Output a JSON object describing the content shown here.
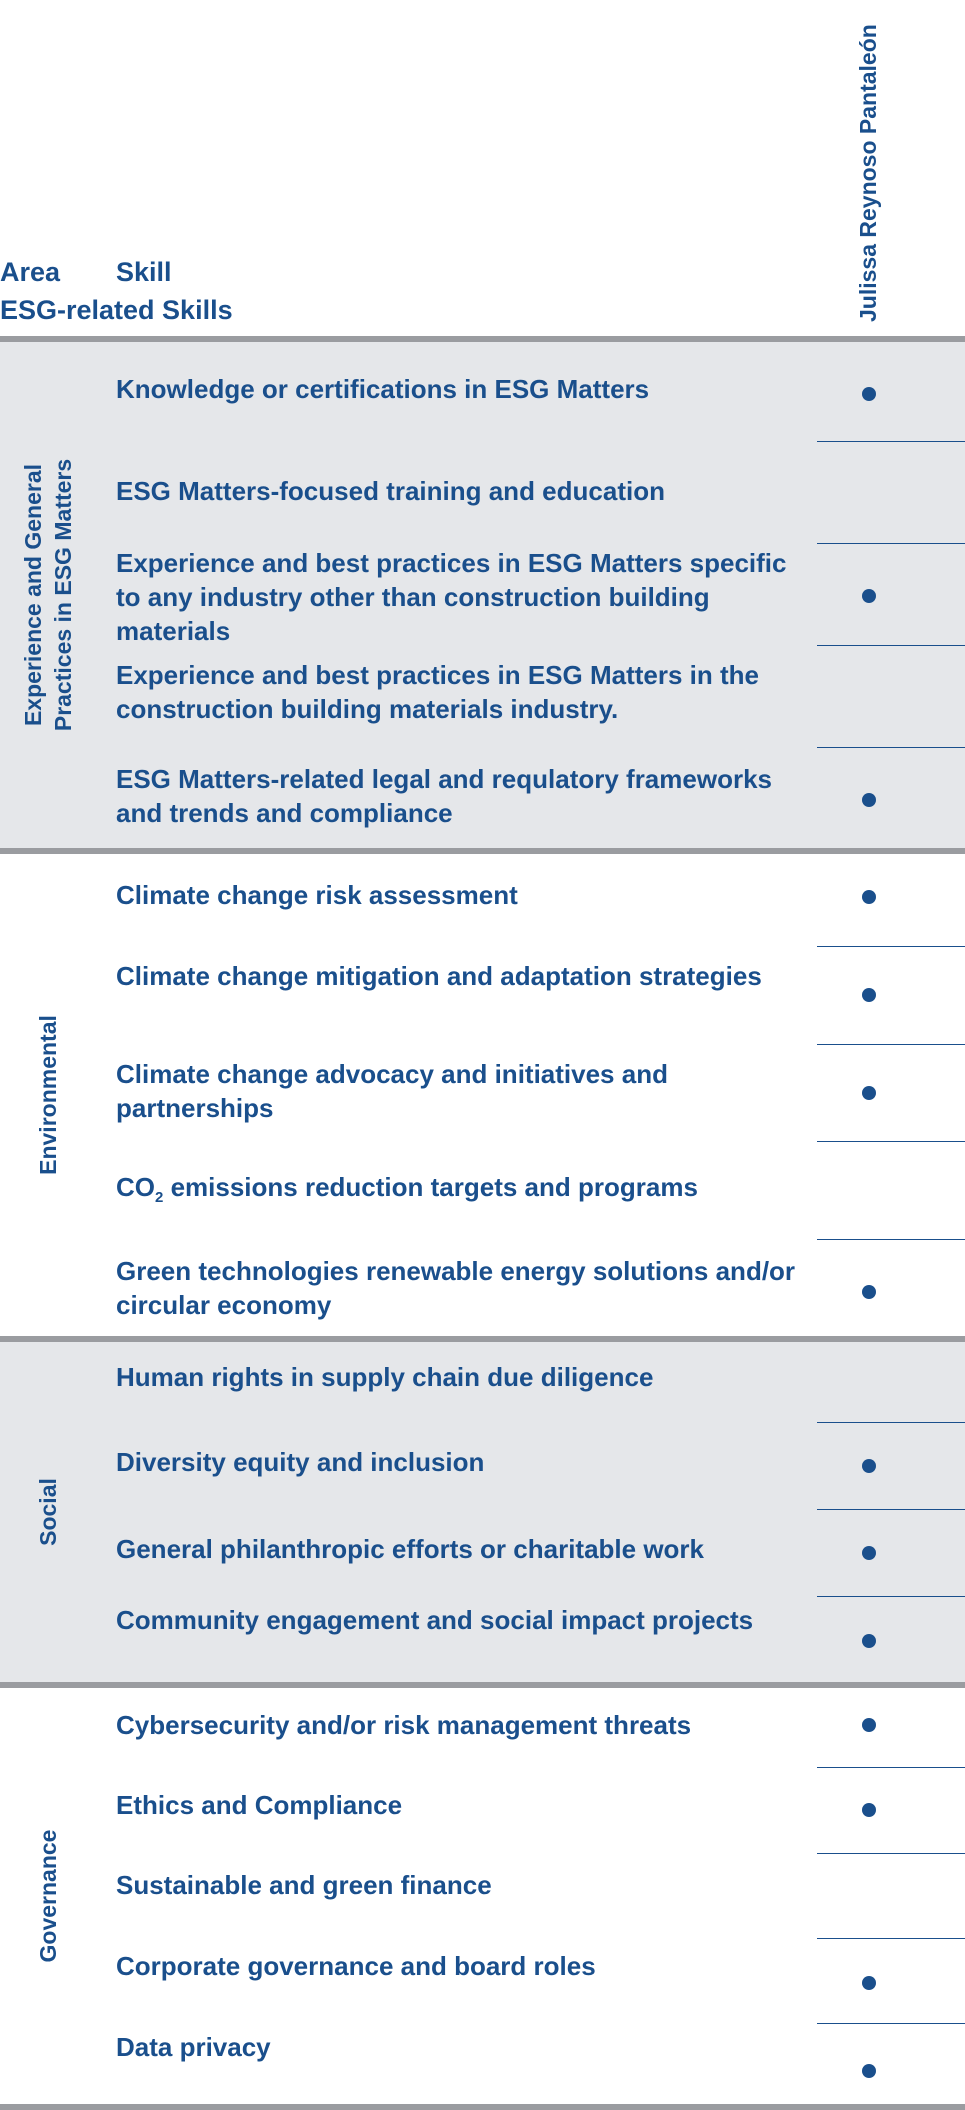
{
  "header": {
    "area": "Area",
    "skill": "Skill",
    "category": "ESG-related Skills",
    "person": "Julissa Reynoso Pantaleón"
  },
  "sections": [
    {
      "area_line1": "Experience and General",
      "area_line2": "Practices in ESG Matters",
      "rows": [
        {
          "skill": "Knowledge or certifications in ESG Matters",
          "has_skill": true
        },
        {
          "skill": "ESG Matters-focused training and education",
          "has_skill": false
        },
        {
          "skill": "Experience and best practices in ESG Matters specific to any industry other than construction building materials",
          "has_skill": true
        },
        {
          "skill": "Experience and best practices in ESG Matters in the construction building materials industry.",
          "has_skill": false
        },
        {
          "skill": "ESG Matters-related legal and requlatory frameworks and trends and compliance",
          "has_skill": true
        }
      ]
    },
    {
      "area_line1": "Environmental",
      "rows": [
        {
          "skill": "Climate change risk assessment",
          "has_skill": true
        },
        {
          "skill": "Climate change mitigation and adaptation strategies",
          "has_skill": true
        },
        {
          "skill": "Climate change advocacy and initiatives and partnerships",
          "has_skill": true
        },
        {
          "skill_prefix": "CO",
          "skill_sub": "2",
          "skill_suffix": " emissions reduction targets and programs",
          "has_skill": false
        },
        {
          "skill": "Green technologies renewable energy solutions and/or circular economy",
          "has_skill": true
        }
      ]
    },
    {
      "area_line1": "Social",
      "rows": [
        {
          "skill": "Human rights in supply chain due diligence",
          "has_skill": false
        },
        {
          "skill": "Diversity equity and inclusion",
          "has_skill": true
        },
        {
          "skill": "General philanthropic efforts or charitable work",
          "has_skill": true
        },
        {
          "skill": "Community engagement and social impact projects",
          "has_skill": true
        }
      ]
    },
    {
      "area_line1": "Governance",
      "rows": [
        {
          "skill": "Cybersecurity and/or risk management threats",
          "has_skill": true
        },
        {
          "skill": "Ethics and Compliance",
          "has_skill": true
        },
        {
          "skill": "Sustainable and green finance",
          "has_skill": false
        },
        {
          "skill": "Corporate governance and board roles",
          "has_skill": true
        },
        {
          "skill": "Data privacy",
          "has_skill": true
        }
      ]
    }
  ]
}
